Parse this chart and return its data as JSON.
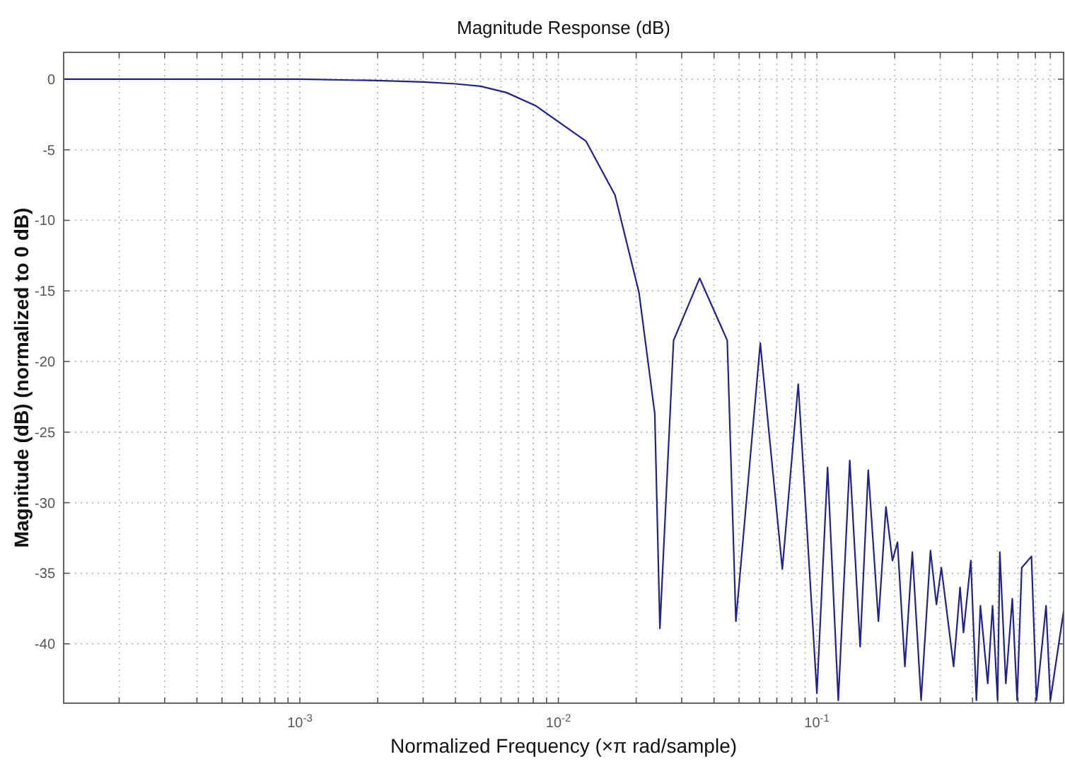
{
  "chart_data": {
    "type": "line",
    "title": "Magnitude Response (dB)",
    "xlabel": "Normalized Frequency (×π rad/sample)",
    "ylabel": "Magnitude (dB) (normalized to 0 dB)",
    "log": "x",
    "grid": true,
    "xlim": [
      0.000122,
      0.9
    ],
    "ylim": [
      -44.2,
      1.9
    ],
    "xticks": [
      {
        "value": 0.001,
        "label": "10$^{-3}$"
      },
      {
        "value": 0.01,
        "label": "10$^{-2}$"
      },
      {
        "value": 0.1,
        "label": "10$^{-1}$"
      }
    ],
    "yticks": [
      0,
      -5,
      -10,
      -15,
      -20,
      -25,
      -30,
      -35,
      -40
    ],
    "series": [
      {
        "color": "#22228c",
        "x": [
          0.000122,
          0.001,
          0.002,
          0.003,
          0.004,
          0.005,
          0.0063,
          0.0082,
          0.0128,
          0.01655,
          0.0205,
          0.0236,
          0.0247,
          0.0279,
          0.0352,
          0.045,
          0.0486,
          0.0604,
          0.0735,
          0.0847,
          0.1,
          0.11,
          0.121,
          0.134,
          0.147,
          0.158,
          0.173,
          0.185,
          0.196,
          0.205,
          0.219,
          0.234,
          0.253,
          0.275,
          0.29,
          0.303,
          0.338,
          0.358,
          0.369,
          0.394,
          0.414,
          0.429,
          0.458,
          0.478,
          0.5,
          0.51,
          0.538,
          0.57,
          0.595,
          0.62,
          0.676,
          0.707,
          0.77,
          0.8,
          0.9
        ],
        "values": [
          0,
          0,
          -0.1,
          -0.2,
          -0.33,
          -0.5,
          -0.95,
          -1.9,
          -4.4,
          -8.2,
          -15.1,
          -23.7,
          -38.9,
          -18.5,
          -14.1,
          -18.5,
          -38.4,
          -18.7,
          -34.7,
          -21.6,
          -43.5,
          -27.5,
          -44,
          -27,
          -40.2,
          -27.7,
          -38.4,
          -30.3,
          -34.1,
          -32.8,
          -41.6,
          -33.5,
          -44,
          -33.4,
          -37.2,
          -34.6,
          -41.6,
          -36,
          -39.2,
          -34.1,
          -44,
          -37.3,
          -42.8,
          -37.3,
          -44,
          -33.5,
          -42.8,
          -36.8,
          -44,
          -34.6,
          -33.8,
          -44,
          -37.3,
          -44,
          -37.7
        ]
      }
    ]
  }
}
